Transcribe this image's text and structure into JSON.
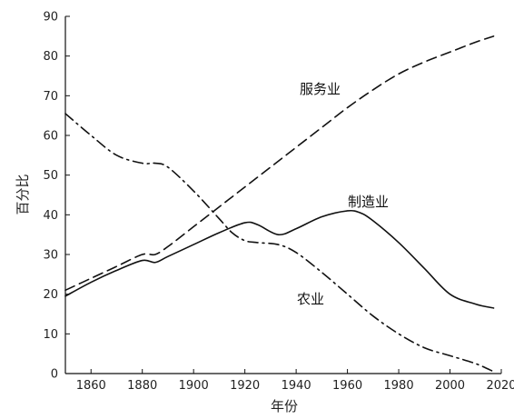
{
  "chart_data": {
    "type": "line",
    "title": "",
    "xlabel": "年份",
    "ylabel": "百分比",
    "xlim": [
      1850,
      2020
    ],
    "ylim": [
      0,
      90
    ],
    "x_ticks": [
      1860,
      1880,
      1900,
      1920,
      1940,
      1960,
      1980,
      2000,
      2020
    ],
    "y_ticks": [
      0,
      10,
      20,
      30,
      40,
      50,
      60,
      70,
      80,
      90
    ],
    "grid": false,
    "legend": "none (series labeled directly on lines)",
    "series": [
      {
        "name": "服务业",
        "style": "dashed",
        "color": "#111111",
        "points": [
          [
            1850,
            21
          ],
          [
            1860,
            24
          ],
          [
            1870,
            27
          ],
          [
            1880,
            30
          ],
          [
            1885,
            30
          ],
          [
            1890,
            32
          ],
          [
            1900,
            37
          ],
          [
            1910,
            42
          ],
          [
            1920,
            47
          ],
          [
            1930,
            52
          ],
          [
            1940,
            57
          ],
          [
            1950,
            62
          ],
          [
            1960,
            67
          ],
          [
            1970,
            71.5
          ],
          [
            1980,
            75.5
          ],
          [
            1990,
            78.5
          ],
          [
            2000,
            81
          ],
          [
            2010,
            83.5
          ],
          [
            2017,
            85
          ]
        ]
      },
      {
        "name": "制造业",
        "style": "solid",
        "color": "#111111",
        "points": [
          [
            1850,
            19.5
          ],
          [
            1860,
            23
          ],
          [
            1870,
            26
          ],
          [
            1880,
            28.5
          ],
          [
            1885,
            28
          ],
          [
            1890,
            29.5
          ],
          [
            1900,
            32.5
          ],
          [
            1910,
            35.5
          ],
          [
            1920,
            38
          ],
          [
            1925,
            37.5
          ],
          [
            1933,
            35
          ],
          [
            1940,
            36.5
          ],
          [
            1950,
            39.5
          ],
          [
            1960,
            41
          ],
          [
            1965,
            40.5
          ],
          [
            1970,
            38.5
          ],
          [
            1980,
            33
          ],
          [
            1990,
            26.5
          ],
          [
            2000,
            20
          ],
          [
            2010,
            17.5
          ],
          [
            2017,
            16.5
          ]
        ]
      },
      {
        "name": "农业",
        "style": "dash-dot",
        "color": "#111111",
        "points": [
          [
            1850,
            65.5
          ],
          [
            1860,
            60
          ],
          [
            1870,
            55
          ],
          [
            1880,
            53
          ],
          [
            1885,
            53
          ],
          [
            1890,
            52
          ],
          [
            1900,
            46
          ],
          [
            1910,
            39
          ],
          [
            1915,
            35.5
          ],
          [
            1920,
            33.5
          ],
          [
            1925,
            33
          ],
          [
            1933,
            32.5
          ],
          [
            1940,
            30.5
          ],
          [
            1950,
            25.5
          ],
          [
            1960,
            20
          ],
          [
            1970,
            14.5
          ],
          [
            1980,
            10
          ],
          [
            1990,
            6.5
          ],
          [
            2000,
            4.5
          ],
          [
            2010,
            2.5
          ],
          [
            2017,
            0.5
          ]
        ]
      }
    ]
  }
}
